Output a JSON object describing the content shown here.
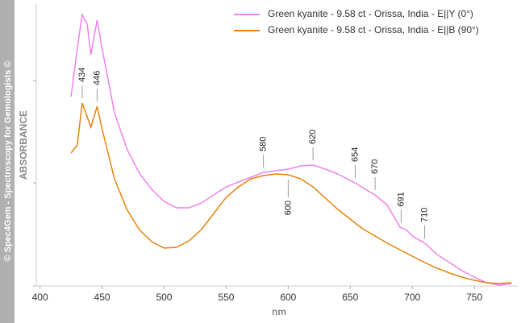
{
  "chart_data": {
    "type": "line",
    "watermark": "© Spec4Gem - Spectroscopy for Gemologists ©",
    "xlabel": "nm",
    "ylabel": "ABSORBANCE",
    "xlim": [
      397,
      785
    ],
    "xticks": [
      400,
      450,
      500,
      550,
      600,
      650,
      700,
      750
    ],
    "ylim": [
      0,
      350
    ],
    "yticks": [
      0,
      128,
      255
    ],
    "x": [
      425,
      430,
      434,
      438,
      441,
      446,
      450,
      460,
      470,
      480,
      490,
      500,
      510,
      520,
      530,
      540,
      550,
      560,
      570,
      580,
      590,
      600,
      610,
      620,
      630,
      640,
      650,
      654,
      660,
      670,
      680,
      690,
      695,
      700,
      710,
      720,
      730,
      740,
      750,
      760,
      770,
      780
    ],
    "series": [
      {
        "name": "Green kyanite - 9.58 ct - Orissa, India - E||Y (0°)",
        "color": "#ee82ee",
        "values": [
          235,
          295,
          337,
          325,
          287,
          330,
          295,
          215,
          170,
          140,
          120,
          105,
          97,
          97,
          103,
          113,
          123,
          129,
          135,
          141,
          143,
          145,
          149,
          150,
          145,
          139,
          131,
          128,
          122,
          113,
          100,
          73,
          70,
          62,
          53,
          39,
          29,
          19,
          11,
          4,
          1,
          3
        ],
        "peaks_above": [
          580,
          620,
          654,
          670,
          691,
          710
        ],
        "peaks_below": []
      },
      {
        "name": "Green kyanite - 9.58 ct - Orissa, India - E||B (90°)",
        "color": "#e8820c",
        "values": [
          165,
          175,
          227,
          210,
          197,
          223,
          195,
          133,
          95,
          70,
          55,
          47,
          48,
          56,
          70,
          90,
          110,
          123,
          133,
          137,
          139,
          138,
          133,
          123,
          109,
          95,
          83,
          78,
          71,
          62,
          53,
          45,
          41,
          37,
          29,
          22,
          16,
          11,
          7,
          4,
          3,
          4
        ],
        "peaks_above": [
          434,
          446
        ],
        "peaks_below": [
          600
        ]
      }
    ]
  }
}
